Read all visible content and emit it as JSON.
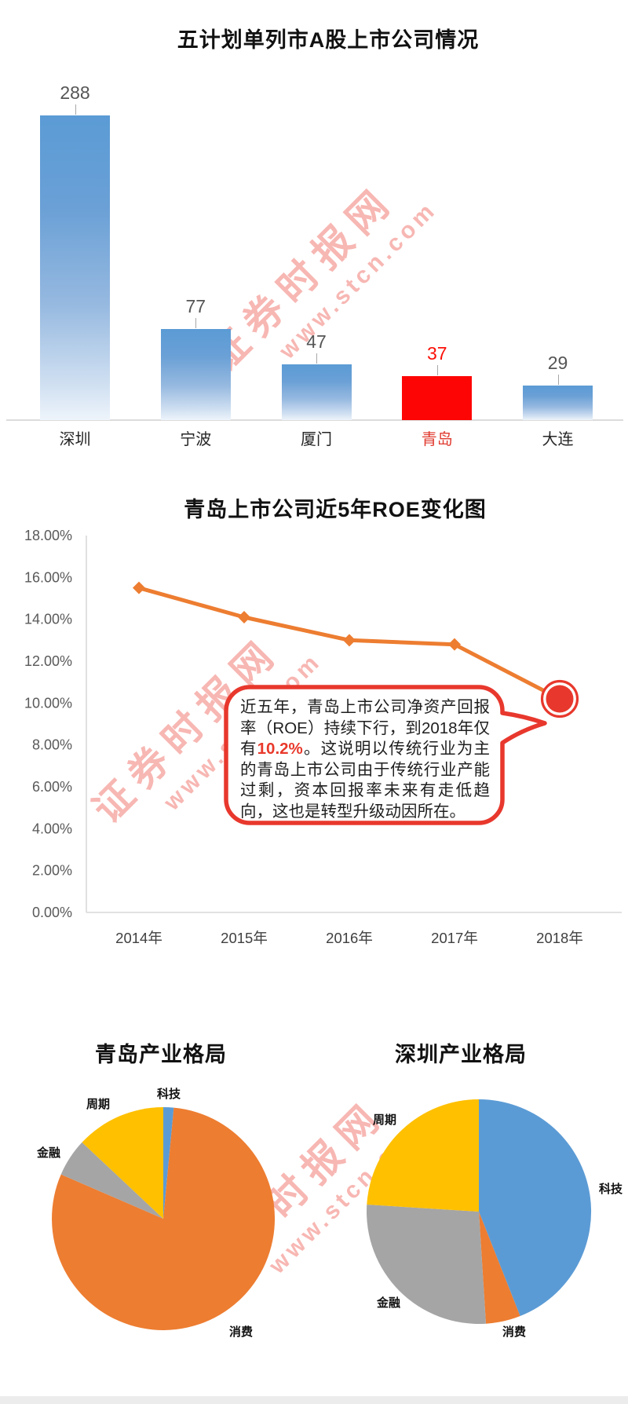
{
  "watermark": {
    "main": "证券时报网",
    "sub": "www.stcn.com"
  },
  "chart_data": [
    {
      "type": "bar",
      "title": "五计划单列市A股上市公司情况",
      "categories": [
        "深圳",
        "宁波",
        "厦门",
        "青岛",
        "大连"
      ],
      "values": [
        288,
        77,
        47,
        37,
        29
      ],
      "highlight_category": "青岛",
      "highlight_value": 37,
      "bar_color": "#5b9bd5",
      "highlight_color": "#fe0505",
      "value_label_color": "#555555",
      "highlight_label_color": "#fb1007",
      "grid": "off",
      "legend": "none"
    },
    {
      "type": "line",
      "title": "青岛上市公司近5年ROE变化图",
      "x": [
        "2014年",
        "2015年",
        "2016年",
        "2017年",
        "2018年"
      ],
      "series": [
        {
          "name": "ROE",
          "values": [
            15.5,
            14.1,
            13.0,
            12.8,
            10.2
          ]
        }
      ],
      "unit": "percent",
      "ylim": [
        0,
        18
      ],
      "y_ticks": [
        "18.00%",
        "16.00%",
        "14.00%",
        "12.00%",
        "10.00%",
        "8.00%",
        "6.00%",
        "4.00%",
        "2.00%",
        "0.00%"
      ],
      "line_color": "#ed7d31",
      "last_point_marker_color": "#e8382d",
      "grid": "off",
      "legend": "none",
      "annotation": {
        "text_before": "近五年，青岛上市公司净资产回报率（ROE）持续下行，到2018年仅有",
        "highlight": "10.2%",
        "text_after": "。这说明以传统行业为主的青岛上市公司由于传统行业产能过剩，资本回报率未来有走低趋向，这也是转型升级动因所在。",
        "highlight_color": "#e8392b",
        "border_color": "#e8382d"
      }
    },
    {
      "type": "pie",
      "title": "青岛产业格局",
      "labels": [
        "科技",
        "消费",
        "金融",
        "周期"
      ],
      "values": [
        1.5,
        80,
        5.5,
        13
      ],
      "colors": [
        "#5b9bd5",
        "#ed7d31",
        "#a5a5a5",
        "#ffc000"
      ],
      "start_angle": "12-oclock",
      "direction": "clockwise"
    },
    {
      "type": "pie",
      "title": "深圳产业格局",
      "labels": [
        "科技",
        "消费",
        "金融",
        "周期"
      ],
      "values": [
        44,
        5,
        27,
        24
      ],
      "colors": [
        "#5b9bd5",
        "#ed7d31",
        "#a5a5a5",
        "#ffc000"
      ],
      "start_angle": "12-oclock",
      "direction": "clockwise"
    }
  ]
}
